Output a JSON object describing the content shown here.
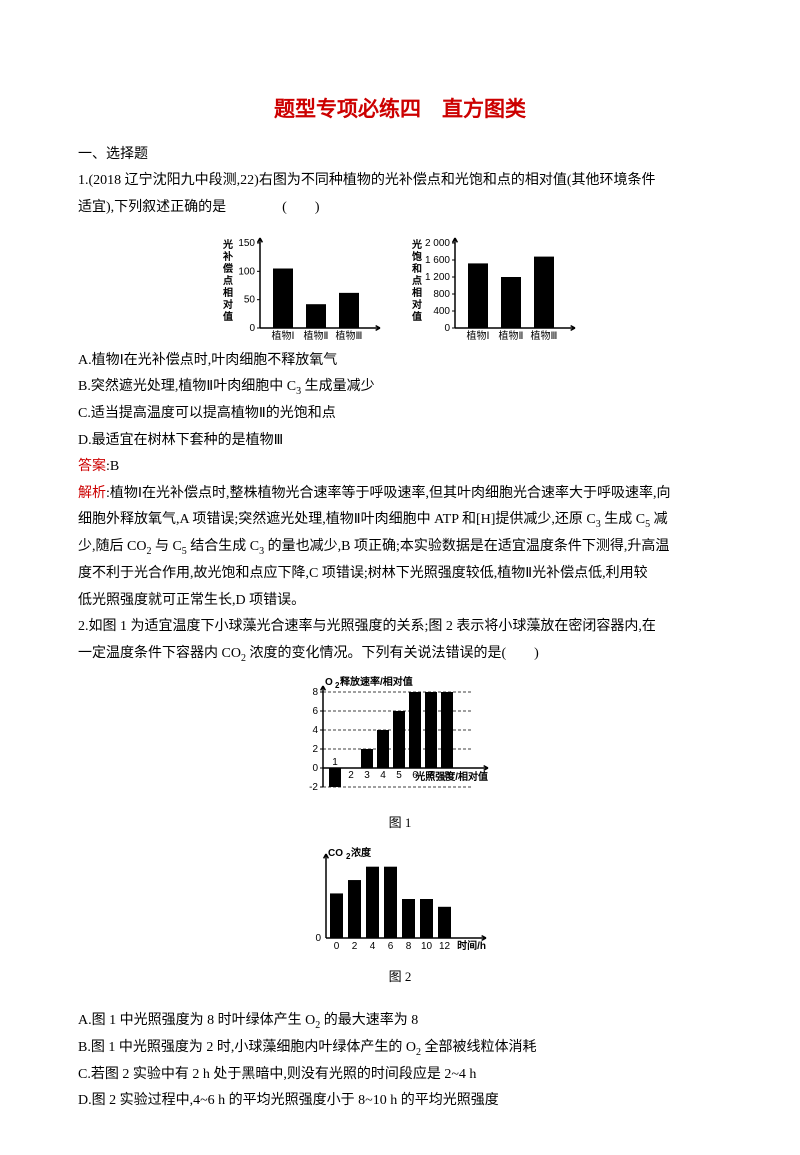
{
  "title": "题型专项必练四　直方图类",
  "sectionHead": "一、选择题",
  "q1": {
    "stem_a": "1.(2018 辽宁沈阳九中段测,22)右图为不同种植物的光补偿点和光饱和点的相对值(其他环境条件",
    "stem_b": "适宜),下列叙述正确的是　　　　(　　)",
    "optA": "A.植物Ⅰ在光补偿点时,叶肉细胞不释放氧气",
    "optB_a": "B.突然遮光处理,植物Ⅱ叶肉细胞中 C",
    "optB_sub": "3",
    "optB_b": " 生成量减少",
    "optC": "C.适当提高温度可以提高植物Ⅱ的光饱和点",
    "optD": "D.最适宜在树林下套种的是植物Ⅲ",
    "ansLabel": "答案",
    "ans": ":B",
    "expLabel": "解析",
    "exp_a": ":植物Ⅰ在光补偿点时,整株植物光合速率等于呼吸速率,但其叶肉细胞光合速率大于呼吸速率,向",
    "exp_b_a": "细胞外释放氧气,A 项错误;突然遮光处理,植物Ⅱ叶肉细胞中 ATP 和[H]提供减少,还原 C",
    "exp_b_sub1": "3",
    "exp_b_b": " 生成 C",
    "exp_b_sub2": "5",
    "exp_b_c": " 减",
    "exp_c_a": "少,随后 CO",
    "exp_c_sub1": "2",
    "exp_c_b": " 与 C",
    "exp_c_sub2": "5",
    "exp_c_c": " 结合生成 C",
    "exp_c_sub3": "3",
    "exp_c_d": " 的量也减少,B 项正确;本实验数据是在适宜温度条件下测得,升高温",
    "exp_d": "度不利于光合作用,故光饱和点应下降,C 项错误;树林下光照强度较低,植物Ⅱ光补偿点低,利用较",
    "exp_e": "低光照强度就可正常生长,D 项错误。"
  },
  "q2": {
    "stem_a": "2.如图 1 为适宜温度下小球藻光合速率与光照强度的关系;图 2 表示将小球藻放在密闭容器内,在",
    "stem_b_a": "一定温度条件下容器内 CO",
    "stem_b_sub": "2",
    "stem_b_b": " 浓度的变化情况。下列有关说法错误的是(　　)",
    "cap1": "图 1",
    "cap2": "图 2",
    "optA_a": "A.图 1 中光照强度为 8 时叶绿体产生 O",
    "optA_sub": "2",
    "optA_b": " 的最大速率为 8",
    "optB_a": "B.图 1 中光照强度为 2 时,小球藻细胞内叶绿体产生的 O",
    "optB_sub": "2",
    "optB_b": " 全部被线粒体消耗",
    "optC": "C.若图 2 实验中有 2 h 处于黑暗中,则没有光照的时间段应是 2~4 h",
    "optD": "D.图 2 实验过程中,4~6 h 的平均光照强度小于 8~10 h 的平均光照强度"
  },
  "chart1a": {
    "ylabel": "光补偿点相对值",
    "yticks": [
      "0",
      "50",
      "100",
      "150"
    ],
    "ymax": 150,
    "cats": [
      "植物Ⅰ",
      "植物Ⅱ",
      "植物Ⅲ"
    ],
    "vals": [
      105,
      42,
      62
    ],
    "bar_color": "#000000",
    "bg": "#ffffff",
    "axis_color": "#000000",
    "font_size": 10
  },
  "chart1b": {
    "ylabel": "光饱和点相对值",
    "yticks": [
      "0",
      "400",
      "800",
      "1 200",
      "1 600",
      "2 000"
    ],
    "ymax": 2000,
    "cats": [
      "植物Ⅰ",
      "植物Ⅱ",
      "植物Ⅲ"
    ],
    "vals": [
      1520,
      1200,
      1680
    ],
    "bar_color": "#000000",
    "bg": "#ffffff",
    "axis_color": "#000000",
    "font_size": 10
  },
  "chart2a": {
    "ylabel_a": "O",
    "ylabel_sub": "2",
    "ylabel_b": "释放速率/相对值",
    "xlabel": "光照强度/相对值",
    "yticks": [
      "-2",
      "0",
      "2",
      "4",
      "6",
      "8"
    ],
    "ymin": -2,
    "ymax": 8,
    "xvals": [
      "1",
      "2",
      "3",
      "4",
      "5",
      "6",
      "7",
      "8"
    ],
    "vals": [
      -2,
      0,
      2,
      4,
      6,
      8,
      8,
      8
    ],
    "bar_color": "#000000",
    "grid_color": "#000000",
    "bg": "#ffffff",
    "axis_color": "#000000",
    "font_size": 10
  },
  "chart2b": {
    "ylabel_a": "CO",
    "ylabel_sub": "2",
    "ylabel_b": "浓度",
    "xlabel": "时间/h",
    "yticks": [
      "0"
    ],
    "xvals": [
      "0",
      "2",
      "4",
      "6",
      "8",
      "10",
      "12"
    ],
    "vals": [
      4,
      5.2,
      6.4,
      6.4,
      3.5,
      3.5,
      2.8
    ],
    "ymax": 7,
    "bar_color": "#000000",
    "bg": "#ffffff",
    "axis_color": "#000000",
    "font_size": 10
  }
}
